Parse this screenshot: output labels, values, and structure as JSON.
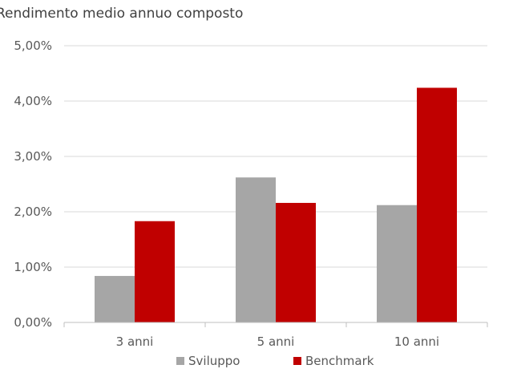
{
  "chart_data": {
    "type": "bar",
    "title": "Rendimento medio annuo composto",
    "categories": [
      "3 anni",
      "5 anni",
      "10 anni"
    ],
    "series": [
      {
        "name": "Sviluppo",
        "color": "#a6a6a6",
        "values": [
          0.84,
          2.62,
          2.12
        ]
      },
      {
        "name": "Benchmark",
        "color": "#c00000",
        "values": [
          1.83,
          2.16,
          4.24
        ]
      }
    ],
    "ylim": [
      0,
      5
    ],
    "yticks": [
      "0,00%",
      "1,00%",
      "2,00%",
      "3,00%",
      "4,00%",
      "5,00%"
    ],
    "grid": true,
    "legend_position": "bottom"
  }
}
